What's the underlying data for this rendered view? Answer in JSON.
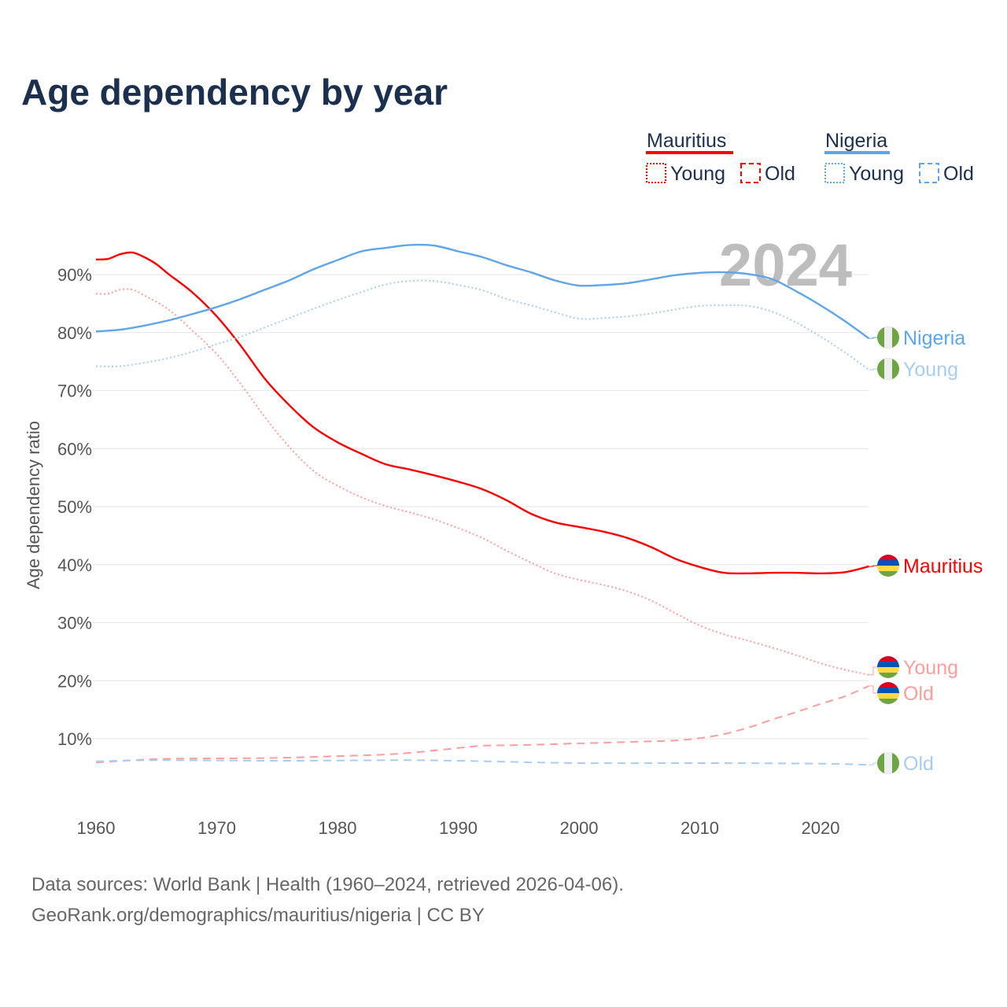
{
  "chart_data": {
    "type": "line",
    "title": "Age dependency by year",
    "xlabel": "",
    "ylabel": "Age dependency ratio",
    "xlim": [
      1960,
      2024
    ],
    "ylim": [
      0,
      95
    ],
    "x_ticks": [
      "1960",
      "1970",
      "1980",
      "1990",
      "2000",
      "2010",
      "2020"
    ],
    "y_ticks": [
      "10%",
      "20%",
      "30%",
      "40%",
      "50%",
      "60%",
      "70%",
      "80%",
      "90%"
    ],
    "grid": true,
    "year_marker": "2024",
    "legend": {
      "placement": "top-right",
      "groups": [
        {
          "name": "Mauritius",
          "color": "#ff0000",
          "items": [
            "Young",
            "Old"
          ]
        },
        {
          "name": "Nigeria",
          "color": "#5ea5ea",
          "items": [
            "Young",
            "Old"
          ]
        }
      ]
    },
    "series": [
      {
        "name": "Mauritius",
        "end_label": "Mauritius",
        "country": "Mauritius",
        "kind": "total",
        "color": "#ff0000",
        "dash": "solid",
        "x": [
          1960,
          1961,
          1962,
          1963,
          1964,
          1965,
          1966,
          1968,
          1970,
          1972,
          1974,
          1976,
          1978,
          1980,
          1982,
          1984,
          1986,
          1988,
          1990,
          1992,
          1994,
          1996,
          1998,
          2000,
          2002,
          2004,
          2006,
          2008,
          2010,
          2012,
          2014,
          2016,
          2018,
          2020,
          2022,
          2024
        ],
        "values": [
          92.6,
          92.7,
          93.5,
          93.8,
          93.0,
          91.8,
          90.1,
          86.9,
          82.8,
          77.7,
          72.0,
          67.5,
          63.7,
          61.1,
          59.1,
          57.3,
          56.4,
          55.4,
          54.3,
          53.0,
          51.1,
          48.8,
          47.3,
          46.5,
          45.7,
          44.6,
          43.0,
          41.0,
          39.6,
          38.6,
          38.5,
          38.6,
          38.6,
          38.5,
          38.7,
          39.7
        ]
      },
      {
        "name": "Mauritius Young",
        "end_label": "Young",
        "country": "Mauritius",
        "kind": "young",
        "color": "#ff9d9d",
        "dash": "dotted",
        "x": [
          1960,
          1961,
          1962,
          1963,
          1964,
          1966,
          1968,
          1970,
          1972,
          1974,
          1976,
          1978,
          1980,
          1982,
          1984,
          1986,
          1988,
          1990,
          1992,
          1994,
          1996,
          1998,
          2000,
          2002,
          2004,
          2006,
          2008,
          2010,
          2012,
          2014,
          2016,
          2018,
          2020,
          2022,
          2024
        ],
        "values": [
          86.7,
          86.7,
          87.4,
          87.4,
          86.4,
          84.0,
          80.3,
          76.3,
          71.1,
          65.4,
          60.3,
          56.2,
          53.6,
          51.6,
          50.1,
          49.0,
          47.8,
          46.3,
          44.6,
          42.4,
          40.4,
          38.5,
          37.4,
          36.5,
          35.4,
          33.8,
          31.6,
          29.5,
          28.0,
          26.9,
          25.7,
          24.4,
          23.0,
          21.9,
          21.0
        ]
      },
      {
        "name": "Mauritius Old",
        "end_label": "Old",
        "country": "Mauritius",
        "kind": "old",
        "color": "#ff9d9d",
        "dash": "dashed",
        "x": [
          1960,
          1965,
          1970,
          1975,
          1980,
          1985,
          1990,
          1992,
          1995,
          2000,
          2005,
          2008,
          2010,
          2012,
          2014,
          2016,
          2018,
          2020,
          2022,
          2024
        ],
        "values": [
          5.9,
          6.5,
          6.6,
          6.7,
          7.0,
          7.4,
          8.4,
          8.8,
          8.9,
          9.2,
          9.5,
          9.7,
          10.1,
          10.8,
          11.9,
          13.3,
          14.6,
          16.0,
          17.3,
          19.1
        ]
      },
      {
        "name": "Nigeria",
        "end_label": "Nigeria",
        "country": "Nigeria",
        "kind": "total",
        "color": "#5ea5ea",
        "dash": "solid",
        "x": [
          1960,
          1962,
          1964,
          1966,
          1968,
          1970,
          1972,
          1974,
          1976,
          1978,
          1980,
          1982,
          1984,
          1986,
          1988,
          1990,
          1992,
          1994,
          1996,
          1998,
          2000,
          2002,
          2004,
          2006,
          2008,
          2010,
          2012,
          2014,
          2016,
          2018,
          2020,
          2022,
          2024
        ],
        "values": [
          80.2,
          80.5,
          81.2,
          82.1,
          83.2,
          84.4,
          85.8,
          87.4,
          89.0,
          90.9,
          92.5,
          94.0,
          94.6,
          95.1,
          95.0,
          94.0,
          93.0,
          91.6,
          90.4,
          89.0,
          88.1,
          88.2,
          88.5,
          89.2,
          89.9,
          90.3,
          90.4,
          90.1,
          89.2,
          87.1,
          84.7,
          82.0,
          79.0
        ]
      },
      {
        "name": "Nigeria Young",
        "end_label": "Young",
        "country": "Nigeria",
        "kind": "young",
        "color": "#a8cdf3",
        "dash": "dotted",
        "x": [
          1960,
          1962,
          1964,
          1966,
          1968,
          1970,
          1972,
          1974,
          1976,
          1978,
          1980,
          1982,
          1984,
          1986,
          1988,
          1990,
          1992,
          1994,
          1996,
          1998,
          2000,
          2002,
          2004,
          2006,
          2008,
          2010,
          2012,
          2014,
          2016,
          2018,
          2020,
          2022,
          2024
        ],
        "values": [
          74.2,
          74.2,
          74.8,
          75.6,
          76.7,
          78.0,
          79.3,
          80.9,
          82.5,
          84.1,
          85.6,
          87.0,
          88.3,
          88.9,
          88.9,
          88.2,
          87.3,
          85.8,
          84.7,
          83.5,
          82.4,
          82.5,
          82.8,
          83.3,
          84.0,
          84.6,
          84.7,
          84.6,
          83.6,
          81.7,
          79.3,
          76.6,
          73.6
        ]
      },
      {
        "name": "Nigeria Old",
        "end_label": "Old",
        "country": "Nigeria",
        "kind": "old",
        "color": "#a8cdf3",
        "dash": "dashed",
        "x": [
          1960,
          1965,
          1975,
          1985,
          1990,
          2000,
          2010,
          2020,
          2024
        ],
        "values": [
          6.1,
          6.3,
          6.2,
          6.3,
          6.2,
          5.8,
          5.8,
          5.7,
          5.5
        ]
      }
    ]
  },
  "footer": {
    "line1": "Data sources: World Bank | Health (1960–2024, retrieved 2026-04-06).",
    "line2": "GeoRank.org/demographics/mauritius/nigeria | CC BY"
  }
}
